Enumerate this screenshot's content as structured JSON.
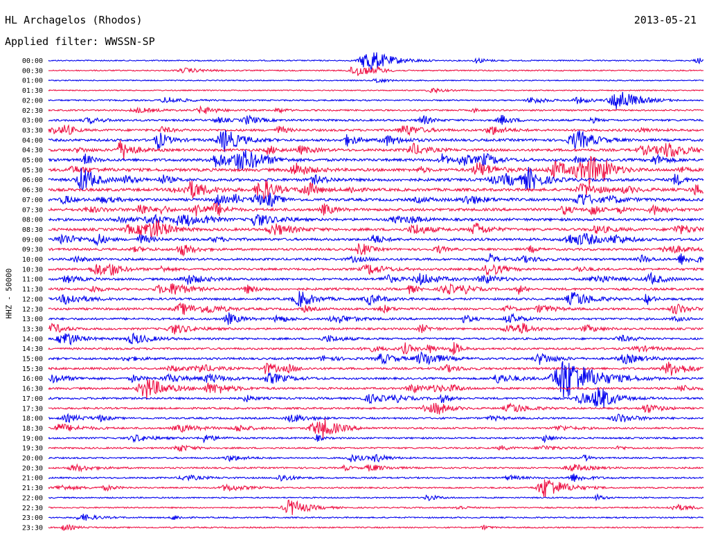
{
  "header": {
    "station": "HL Archagelos (Rhodos)",
    "date": "2013-05-21",
    "filter": "Applied filter: WWSSN-SP"
  },
  "chart_data": {
    "type": "line",
    "subtype": "helicorder",
    "ylabel": "HHZ - 50000",
    "rows": [
      "00:00",
      "00:30",
      "01:00",
      "01:30",
      "02:00",
      "02:30",
      "03:00",
      "03:30",
      "04:00",
      "04:30",
      "05:00",
      "05:30",
      "06:00",
      "06:30",
      "07:00",
      "07:30",
      "08:00",
      "08:30",
      "09:00",
      "09:30",
      "10:00",
      "10:30",
      "11:00",
      "11:30",
      "12:00",
      "12:30",
      "13:00",
      "13:30",
      "14:00",
      "14:30",
      "15:00",
      "15:30",
      "16:00",
      "16:30",
      "17:00",
      "17:30",
      "18:00",
      "18:30",
      "19:00",
      "19:30",
      "20:00",
      "20:30",
      "21:00",
      "21:30",
      "22:00",
      "22:30",
      "23:00",
      "23:30"
    ],
    "row_activity": [
      0.15,
      0.15,
      0.1,
      0.1,
      0.25,
      0.3,
      0.5,
      0.6,
      0.7,
      0.75,
      0.8,
      0.9,
      0.85,
      0.85,
      0.8,
      0.8,
      0.75,
      0.75,
      0.7,
      0.6,
      0.6,
      0.6,
      0.6,
      0.65,
      0.6,
      0.6,
      0.55,
      0.5,
      0.5,
      0.5,
      0.55,
      0.55,
      0.5,
      0.5,
      0.5,
      0.45,
      0.4,
      0.4,
      0.35,
      0.3,
      0.3,
      0.3,
      0.3,
      0.25,
      0.2,
      0.2,
      0.2,
      0.2
    ],
    "series_colors": [
      "#0000ee",
      "#ee1144"
    ],
    "events": [
      {
        "row": "00:00",
        "position": 0.49,
        "amplitude": 2.2
      },
      {
        "row": "00:30",
        "position": 0.47,
        "amplitude": 1.2
      },
      {
        "row": "02:00",
        "position": 0.87,
        "amplitude": 2.0
      },
      {
        "row": "04:00",
        "position": 0.27,
        "amplitude": 1.4
      },
      {
        "row": "06:30",
        "position": 0.22,
        "amplitude": 1.5
      },
      {
        "row": "16:00",
        "position": 0.79,
        "amplitude": 4.0
      },
      {
        "row": "16:30",
        "position": 0.15,
        "amplitude": 2.0
      },
      {
        "row": "17:00",
        "position": 0.84,
        "amplitude": 1.5
      },
      {
        "row": "18:30",
        "position": 0.42,
        "amplitude": 1.4
      },
      {
        "row": "21:30",
        "position": 0.76,
        "amplitude": 2.0
      },
      {
        "row": "22:30",
        "position": 0.37,
        "amplitude": 1.5
      }
    ]
  }
}
